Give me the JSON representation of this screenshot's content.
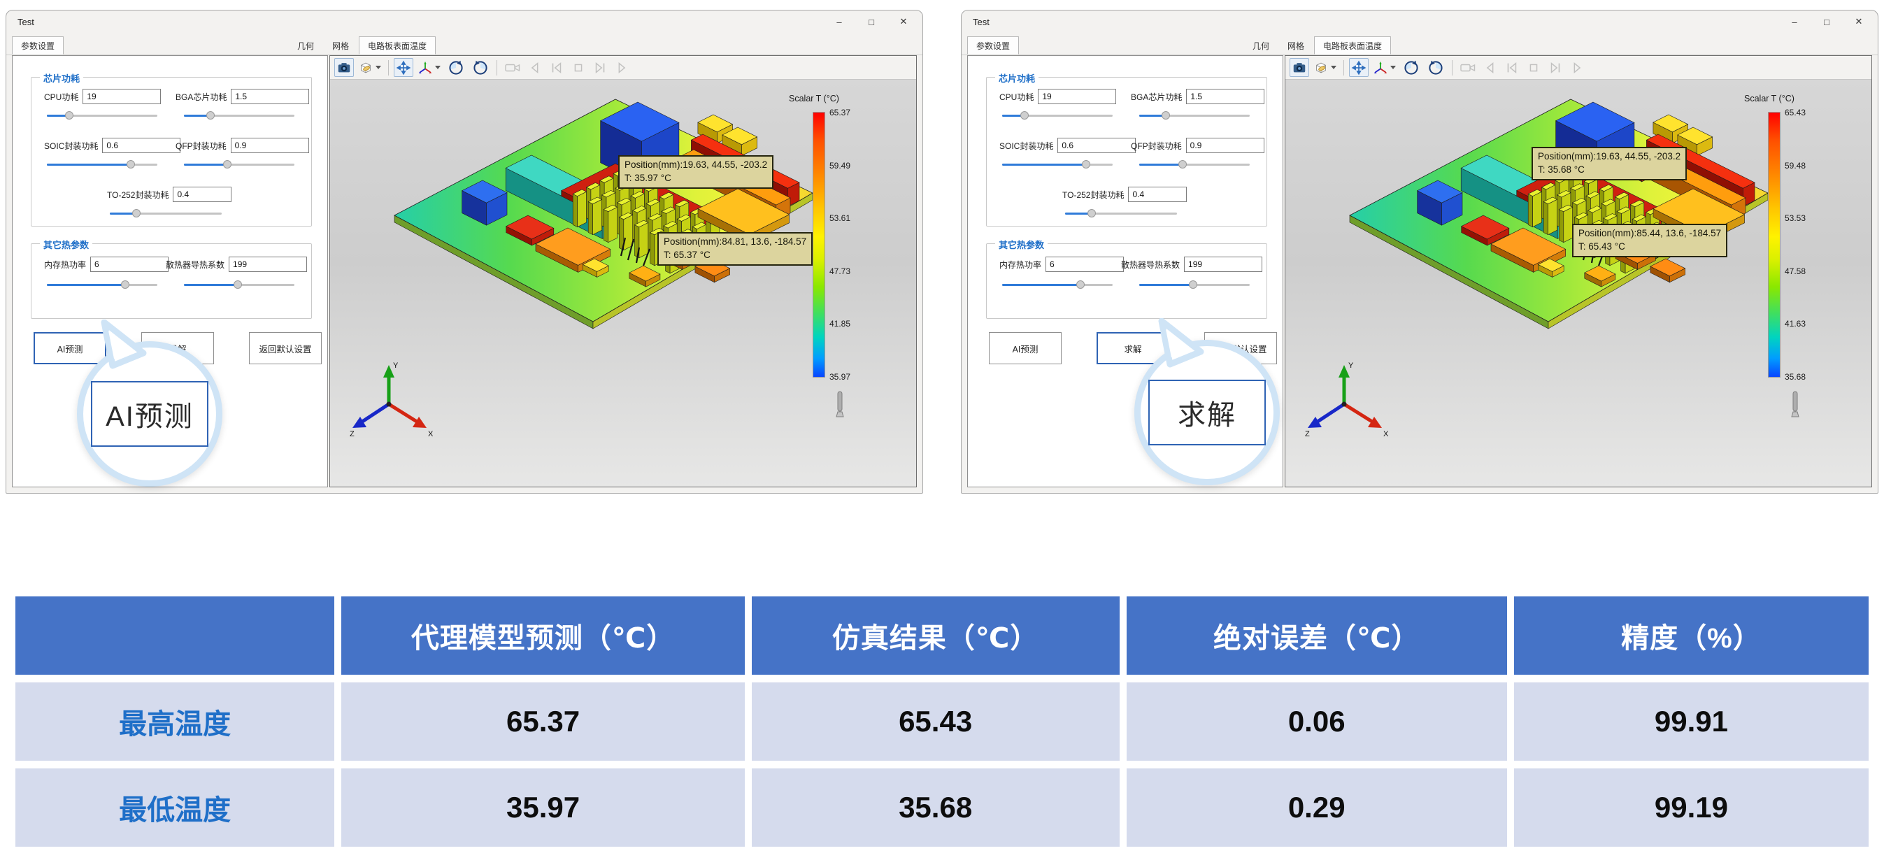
{
  "window": {
    "title": "Test",
    "controls": {
      "minimize": "–",
      "maximize": "□",
      "close": "✕"
    },
    "left_tab": "参数设置",
    "view_tabs": [
      "几何",
      "网格",
      "电路板表面温度"
    ]
  },
  "panel": {
    "groups": [
      {
        "title": "芯片功耗"
      },
      {
        "title": "其它热参数"
      }
    ],
    "fields": {
      "cpu": {
        "label": "CPU功耗",
        "value": "19",
        "slider_pct": 20
      },
      "bga": {
        "label": "BGA芯片功耗",
        "value": "1.5",
        "slider_pct": 24
      },
      "soic": {
        "label": "SOIC封装功耗",
        "value": "0.6",
        "slider_pct": 76
      },
      "qfp": {
        "label": "QFP封装功耗",
        "value": "0.9",
        "slider_pct": 39
      },
      "to252": {
        "label": "TO-252封装功耗",
        "value": "0.4",
        "slider_pct": 24
      },
      "mem": {
        "label": "内存热功率",
        "value": "6",
        "slider_pct": 71
      },
      "hs": {
        "label": "散热器导热系数",
        "value": "199",
        "slider_pct": 49
      }
    },
    "buttons": {
      "predict": "AI预测",
      "solve": "求解",
      "reset": "返回默认设置"
    }
  },
  "viewport": {
    "scalar_title": "Scalar T (°C)",
    "axis": {
      "x": "X",
      "y": "Y",
      "z": "Z"
    }
  },
  "windows": [
    {
      "bubble": "AI预测",
      "colorbar_ticks": [
        "65.37",
        "59.49",
        "53.61",
        "47.73",
        "41.85",
        "35.97"
      ],
      "tooltips": [
        {
          "position": "Position(mm):19.63, 44.55, -203.2",
          "temp": "T: 35.97 °C"
        },
        {
          "position": "Position(mm):84.81, 13.6, -184.57",
          "temp": "T: 65.37 °C"
        }
      ]
    },
    {
      "bubble": "求解",
      "colorbar_ticks": [
        "65.43",
        "59.48",
        "53.53",
        "47.58",
        "41.63",
        "35.68"
      ],
      "tooltips": [
        {
          "position": "Position(mm):19.63, 44.55, -203.2",
          "temp": "T: 35.68 °C"
        },
        {
          "position": "Position(mm):85.44, 13.6, -184.57",
          "temp": "T: 65.43 °C"
        }
      ]
    }
  ],
  "table": {
    "headers": [
      "",
      "代理模型预测（℃）",
      "仿真结果（℃）",
      "绝对误差（℃）",
      "精度（%）"
    ],
    "rows": [
      {
        "label": "最高温度",
        "values": [
          "65.37",
          "65.43",
          "0.06",
          "99.91"
        ]
      },
      {
        "label": "最低温度",
        "values": [
          "35.97",
          "35.68",
          "0.29",
          "99.19"
        ]
      }
    ]
  },
  "colors": {
    "accent": "#2F63B4",
    "group_title": "#1F6FC8",
    "slider_fill": "#2F7BD9",
    "table_header_bg": "#4573C7",
    "table_row_bg": "#D5DBED",
    "table_row_label": "#1F6FC8",
    "tooltip_bg": "#DCD49E"
  }
}
